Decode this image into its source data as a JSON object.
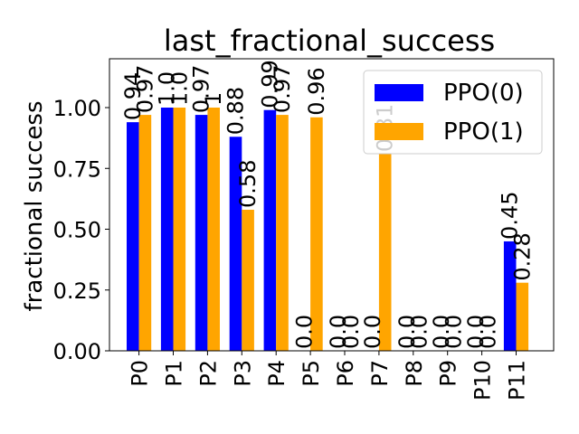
{
  "chart_data": {
    "type": "bar",
    "title": "last_fractional_success",
    "xlabel": "",
    "ylabel": "fractional success",
    "categories": [
      "P0",
      "P1",
      "P2",
      "P3",
      "P4",
      "P5",
      "P6",
      "P7",
      "P8",
      "P9",
      "P10",
      "P11"
    ],
    "series": [
      {
        "name": "PPO(0)",
        "color": "#0000ff",
        "values": [
          0.94,
          1.0,
          0.97,
          0.88,
          0.99,
          0.0,
          0.0,
          0.0,
          0.0,
          0.0,
          0.0,
          0.45
        ],
        "labels": [
          "0.94",
          "1.0",
          "0.97",
          "0.88",
          "0.99",
          "0.0",
          "0.0",
          "0.0",
          "0.0",
          "0.0",
          "0.0",
          "0.45"
        ]
      },
      {
        "name": "PPO(1)",
        "color": "#ffa500",
        "values": [
          0.97,
          1.0,
          1.0,
          0.58,
          0.97,
          0.96,
          0.0,
          0.81,
          0.0,
          0.0,
          0.0,
          0.28
        ],
        "labels": [
          "0.97",
          "1.0",
          "1",
          "0.58",
          "0.97",
          "0.96",
          "0.0",
          "0.81",
          "0.0",
          "0.0",
          "0.0",
          "0.28"
        ]
      }
    ],
    "yticks": [
      "0.00",
      "0.25",
      "0.50",
      "0.75",
      "1.00"
    ],
    "ylim": [
      0,
      1.2
    ],
    "legend_position": "top-right",
    "grid": false
  }
}
